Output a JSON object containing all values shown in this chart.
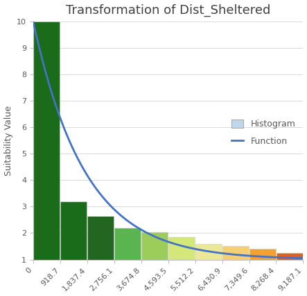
{
  "title": "Transformation of Dist_Sheltered",
  "ylabel": "Suitability Value",
  "xlabel": "",
  "ylim": [
    1,
    10
  ],
  "xlim": [
    0,
    9187.1
  ],
  "yticks": [
    1,
    2,
    3,
    4,
    5,
    6,
    7,
    8,
    9,
    10
  ],
  "xtick_labels": [
    "0",
    "918.7",
    "1,837.4",
    "2,756.1",
    "3,674.8",
    "4,593.5",
    "5,512.2",
    "6,430.9",
    "7,349.6",
    "8,268.4",
    "9,187.1"
  ],
  "xtick_positions": [
    0,
    918.7,
    1837.4,
    2756.1,
    3674.8,
    4593.5,
    5512.2,
    6430.9,
    7349.6,
    8268.4,
    9187.1
  ],
  "num_bars": 10,
  "bar_values": [
    10.0,
    3.2,
    2.65,
    2.2,
    2.05,
    1.85,
    1.6,
    1.5,
    1.4,
    1.25
  ],
  "bar_colors_list": [
    "#1a6b1a",
    "#1a6b1a",
    "#226622",
    "#5ab551",
    "#9ccc5a",
    "#d4e87a",
    "#ece89a",
    "#f5d070",
    "#f5a030",
    "#e06020"
  ],
  "curve_color": "#4472c4",
  "curve_k": 0.0009,
  "hist_legend_color": "#bdd7ee",
  "hist_legend_edge": "#aaaaaa",
  "background_color": "#ffffff",
  "title_color": "#404040",
  "label_color": "#595959",
  "tick_color": "#595959",
  "grid_color": "#d9d9d9",
  "title_fontsize": 13,
  "axis_label_fontsize": 9,
  "tick_fontsize": 8,
  "legend_fontsize": 9
}
